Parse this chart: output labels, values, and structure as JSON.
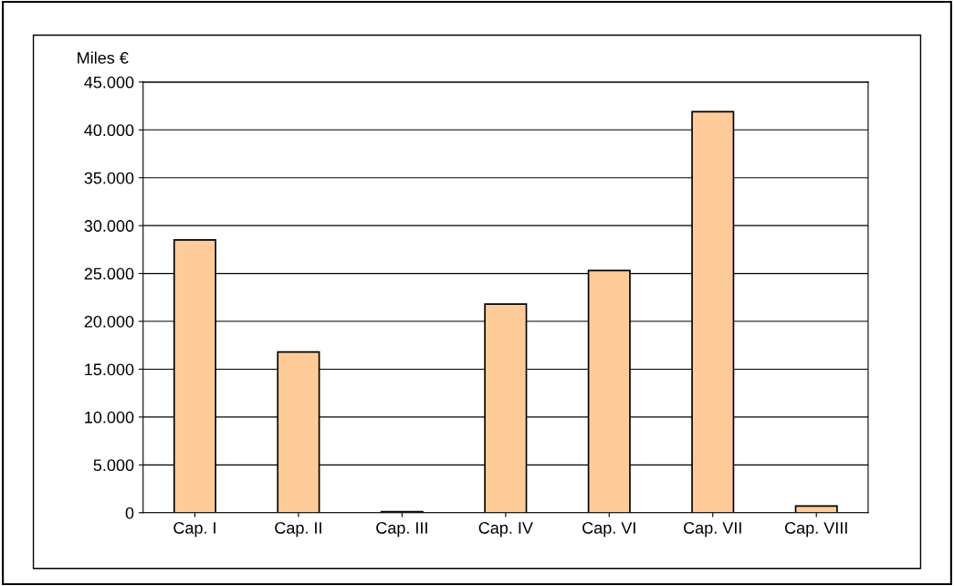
{
  "chart_data": {
    "type": "bar",
    "ylabel": "Miles €",
    "categories": [
      "Cap. I",
      "Cap. II",
      "Cap. III",
      "Cap. IV",
      "Cap. VI",
      "Cap. VII",
      "Cap. VIII"
    ],
    "values": [
      28500,
      16800,
      100,
      21800,
      25300,
      41900,
      700
    ],
    "color": "#ffcc99",
    "ylim": [
      0,
      45000
    ],
    "yticks": [
      {
        "value": 0,
        "label": "0"
      },
      {
        "value": 5000,
        "label": "5.000"
      },
      {
        "value": 10000,
        "label": "10.000"
      },
      {
        "value": 15000,
        "label": "15.000"
      },
      {
        "value": 20000,
        "label": "20.000"
      },
      {
        "value": 25000,
        "label": "25.000"
      },
      {
        "value": 30000,
        "label": "30.000"
      },
      {
        "value": 35000,
        "label": "35.000"
      },
      {
        "value": 40000,
        "label": "40.000"
      },
      {
        "value": 45000,
        "label": "45.000"
      }
    ],
    "grid": "y",
    "legend": false
  }
}
